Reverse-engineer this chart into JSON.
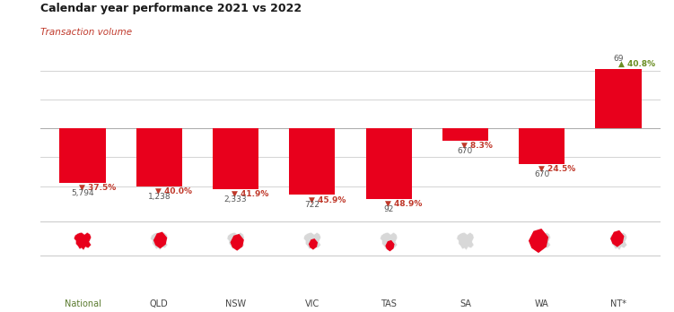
{
  "title": "Calendar year performance 2021 vs 2022",
  "subtitle": "Transaction volume",
  "categories": [
    "National",
    "QLD",
    "NSW",
    "VIC",
    "TAS",
    "SA",
    "WA",
    "NT*"
  ],
  "values": [
    -37.5,
    -40.0,
    -41.9,
    -45.9,
    -48.9,
    -8.3,
    -24.5,
    40.8
  ],
  "volumes": [
    "5,794",
    "1,238",
    "2,333",
    "722",
    "92",
    "670",
    "670",
    "69"
  ],
  "bar_color": "#e8001c",
  "positive_arrow_color": "#6b8e23",
  "negative_arrow_color": "#c0392b",
  "title_color": "#1a1a1a",
  "subtitle_color": "#c0392b",
  "background_color": "#ffffff",
  "ylim": [
    -58,
    50
  ],
  "grid_lines": [
    -40,
    -20,
    0,
    20,
    40
  ],
  "grid_color": "#cccccc",
  "bar_width": 0.6,
  "zero_line_color": "#aaaaaa",
  "label_fontsize": 6.5,
  "vol_color": "#555555",
  "national_label_color": "#5a7a2e"
}
